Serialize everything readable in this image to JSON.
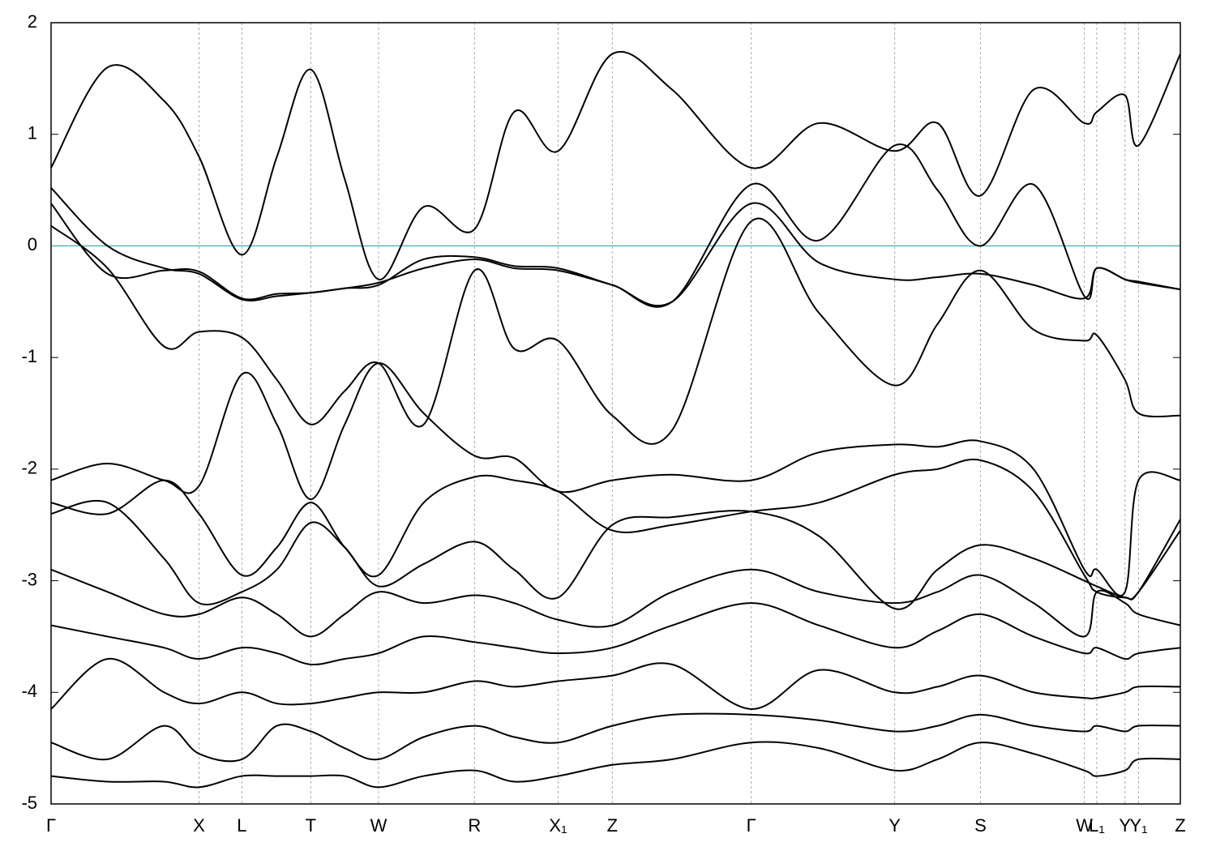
{
  "chart_data": {
    "type": "line",
    "x": [
      0,
      0.5,
      1.0,
      1.31,
      1.69,
      2.0,
      2.3,
      2.6,
      2.9,
      3.3,
      3.75,
      4.1,
      4.49,
      4.97,
      5.5,
      6.2,
      6.8,
      7.47,
      7.85,
      8.23,
      8.7,
      9.15,
      9.26,
      9.51,
      9.63,
      10
    ],
    "xlim": [
      0,
      10
    ],
    "xticks": [
      {
        "value": 0,
        "label": "Γ"
      },
      {
        "value": 1.31,
        "label": "X"
      },
      {
        "value": 1.69,
        "label": "L"
      },
      {
        "value": 2.3,
        "label": "T"
      },
      {
        "value": 2.9,
        "label": "W"
      },
      {
        "value": 3.75,
        "label": "R"
      },
      {
        "value": 4.49,
        "label": "X₁"
      },
      {
        "value": 4.97,
        "label": "Z"
      },
      {
        "value": 6.2,
        "label": "Γ"
      },
      {
        "value": 7.47,
        "label": "Y"
      },
      {
        "value": 8.23,
        "label": "S"
      },
      {
        "value": 9.15,
        "label": "W"
      },
      {
        "value": 9.26,
        "label": "L₁"
      },
      {
        "value": 9.51,
        "label": "Y"
      },
      {
        "value": 9.63,
        "label": "Y₁"
      },
      {
        "value": 10,
        "label": "Z"
      }
    ],
    "ylim": [
      -5,
      2
    ],
    "yticks": [
      2,
      1,
      0,
      -1,
      -2,
      -3,
      -4,
      -5
    ],
    "x_grid": true,
    "reference_line": {
      "value": 0,
      "color": "#5ab4c8"
    },
    "series": [
      {
        "color": "#000000",
        "values": [
          0.7,
          1.6,
          1.3,
          0.8,
          -0.08,
          0.8,
          1.58,
          0.6,
          -0.3,
          0.35,
          0.15,
          1.2,
          0.85,
          1.72,
          1.4,
          0.7,
          1.1,
          0.85,
          1.1,
          0.45,
          1.4,
          1.1,
          1.2,
          1.35,
          0.9,
          1.72
        ]
      },
      {
        "color": "#000000",
        "values": [
          0.52,
          0.0,
          -0.2,
          -0.25,
          -0.48,
          -0.45,
          -0.42,
          -0.38,
          -0.33,
          -0.2,
          -0.12,
          -0.2,
          -0.22,
          -0.35,
          -0.5,
          0.55,
          0.05,
          0.9,
          0.5,
          0.0,
          0.55,
          -0.45,
          -0.2,
          -0.3,
          -0.32,
          -0.39
        ]
      },
      {
        "color": "#000000",
        "values": [
          0.18,
          -0.2,
          -0.9,
          -0.77,
          -0.82,
          -1.2,
          -1.6,
          -1.3,
          -1.05,
          -1.6,
          -0.22,
          -0.92,
          -0.85,
          -1.52,
          -1.65,
          0.22,
          -0.6,
          -1.25,
          -0.7,
          -0.22,
          -0.75,
          -0.85,
          -0.8,
          -1.2,
          -1.5,
          -1.52
        ]
      },
      {
        "color": "#000000",
        "values": [
          0.38,
          -0.25,
          -0.22,
          -0.23,
          -0.47,
          -0.43,
          -0.42,
          -0.38,
          -0.35,
          -0.12,
          -0.1,
          -0.18,
          -0.2,
          -0.35,
          -0.5,
          0.38,
          -0.15,
          -0.3,
          -0.28,
          -0.25,
          -0.35,
          -0.47,
          -0.2,
          -0.3,
          -0.33,
          -0.39
        ]
      },
      {
        "color": "#000000",
        "values": [
          -2.1,
          -1.95,
          -2.1,
          -2.15,
          -1.15,
          -1.6,
          -2.27,
          -1.6,
          -1.05,
          -1.5,
          -1.88,
          -1.9,
          -2.2,
          -2.1,
          -2.05,
          -2.1,
          -1.85,
          -1.78,
          -1.8,
          -1.75,
          -2.0,
          -2.9,
          -2.9,
          -3.1,
          -2.1,
          -2.1
        ]
      },
      {
        "color": "#000000",
        "values": [
          -2.3,
          -2.4,
          -2.1,
          -2.4,
          -2.95,
          -2.7,
          -2.3,
          -2.7,
          -2.95,
          -2.3,
          -2.07,
          -2.1,
          -2.2,
          -2.55,
          -2.5,
          -2.38,
          -2.3,
          -2.05,
          -2.0,
          -1.92,
          -2.2,
          -2.95,
          -3.1,
          -3.15,
          -3.1,
          -2.45
        ]
      },
      {
        "color": "#000000",
        "values": [
          -2.4,
          -2.3,
          -2.8,
          -3.2,
          -3.1,
          -2.9,
          -2.48,
          -2.7,
          -3.05,
          -2.85,
          -2.65,
          -2.9,
          -3.15,
          -2.5,
          -2.43,
          -2.38,
          -2.6,
          -3.25,
          -2.9,
          -2.68,
          -2.8,
          -3.0,
          -3.05,
          -3.15,
          -3.1,
          -2.55
        ]
      },
      {
        "color": "#000000",
        "values": [
          -2.9,
          -3.1,
          -3.3,
          -3.3,
          -3.15,
          -3.3,
          -3.5,
          -3.3,
          -3.1,
          -3.2,
          -3.13,
          -3.2,
          -3.35,
          -3.4,
          -3.1,
          -2.9,
          -3.1,
          -3.2,
          -3.1,
          -2.95,
          -3.2,
          -3.5,
          -3.1,
          -3.2,
          -3.3,
          -3.4
        ]
      },
      {
        "color": "#000000",
        "values": [
          -3.4,
          -3.5,
          -3.6,
          -3.7,
          -3.6,
          -3.65,
          -3.75,
          -3.7,
          -3.65,
          -3.5,
          -3.55,
          -3.6,
          -3.65,
          -3.6,
          -3.4,
          -3.2,
          -3.4,
          -3.6,
          -3.45,
          -3.3,
          -3.5,
          -3.65,
          -3.6,
          -3.7,
          -3.65,
          -3.6
        ]
      },
      {
        "color": "#000000",
        "values": [
          -4.15,
          -3.7,
          -4.0,
          -4.1,
          -4.0,
          -4.1,
          -4.1,
          -4.05,
          -4.0,
          -4.0,
          -3.9,
          -3.95,
          -3.9,
          -3.85,
          -3.75,
          -4.15,
          -3.8,
          -4.0,
          -3.95,
          -3.85,
          -4.0,
          -4.05,
          -4.05,
          -4.0,
          -3.95,
          -3.95
        ]
      },
      {
        "color": "#000000",
        "values": [
          -4.45,
          -4.6,
          -4.3,
          -4.55,
          -4.6,
          -4.3,
          -4.35,
          -4.5,
          -4.6,
          -4.4,
          -4.3,
          -4.4,
          -4.45,
          -4.3,
          -4.2,
          -4.2,
          -4.25,
          -4.35,
          -4.3,
          -4.2,
          -4.3,
          -4.35,
          -4.3,
          -4.35,
          -4.3,
          -4.3
        ]
      },
      {
        "color": "#000000",
        "values": [
          -4.75,
          -4.8,
          -4.8,
          -4.85,
          -4.75,
          -4.75,
          -4.75,
          -4.75,
          -4.85,
          -4.75,
          -4.7,
          -4.8,
          -4.75,
          -4.65,
          -4.6,
          -4.45,
          -4.5,
          -4.7,
          -4.6,
          -4.45,
          -4.55,
          -4.7,
          -4.75,
          -4.7,
          -4.6,
          -4.6
        ]
      }
    ]
  }
}
